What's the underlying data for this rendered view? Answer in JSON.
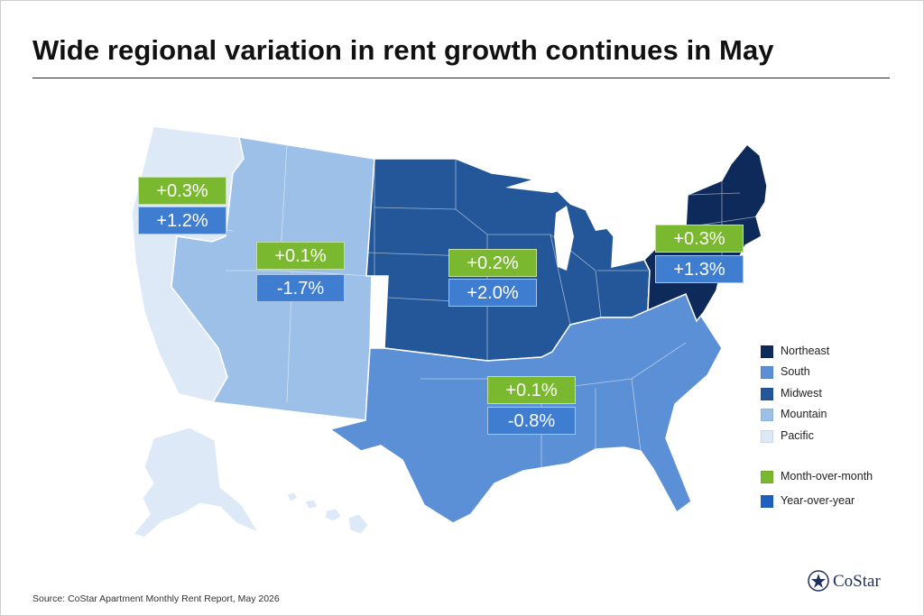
{
  "title": "Wide regional variation in rent growth continues in May",
  "source": "Source: CoStar Apartment Monthly Rent Report, May 2026",
  "logo": {
    "text": "CoStar",
    "icon": "costar-star-icon"
  },
  "colors": {
    "northeast": "#0e2a5a",
    "south": "#5b8fd6",
    "midwest": "#23579a",
    "mountain": "#9cc0e8",
    "pacific": "#dde9f6",
    "month_over_month": "#7ab82f",
    "year_over_year": "#1f5fbf"
  },
  "regions": [
    {
      "id": "pacific",
      "name": "Pacific",
      "mom": "+0.3%",
      "yoy": "+1.2%"
    },
    {
      "id": "mountain",
      "name": "Mountain",
      "mom": "+0.1%",
      "yoy": "-1.7%"
    },
    {
      "id": "midwest",
      "name": "Midwest",
      "mom": "+0.2%",
      "yoy": "+2.0%"
    },
    {
      "id": "south",
      "name": "South",
      "mom": "+0.1%",
      "yoy": "-0.8%"
    },
    {
      "id": "northeast",
      "name": "Northeast",
      "mom": "+0.3%",
      "yoy": "+1.3%"
    }
  ],
  "legend": {
    "regions": [
      "Northeast",
      "South",
      "Midwest",
      "Mountain",
      "Pacific"
    ],
    "metrics": [
      "Month-over-month",
      "Year-over-year"
    ]
  }
}
